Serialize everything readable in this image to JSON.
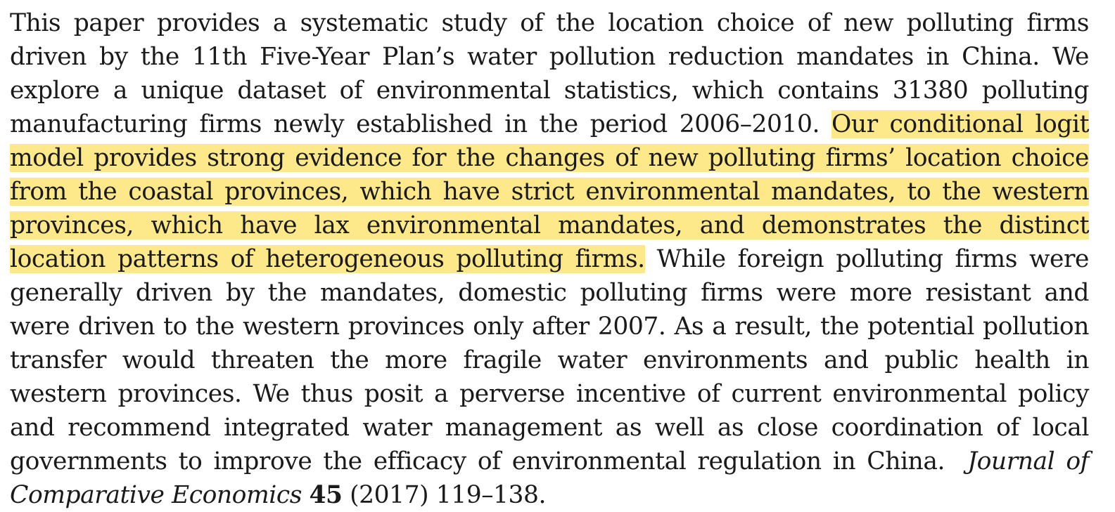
{
  "abstract": {
    "before_highlight": "This paper provides a systematic study of the location choice of new polluting firms driven by the 11th Five-Year Plan’s water pollution reduction mandates in China. We explore a unique dataset of environmental statistics, which contains 31380 polluting manufactur­ing firms newly established in the period 2006–2010.",
    "highlight": "Our conditional logit model pro­vides strong evidence for the changes of new polluting firms’ location choice from the coastal provinces, which have strict environmental mandates, to the western provinces, which have lax environmental mandates, and demonstrates the distinct location patterns of heterogeneous polluting firms.",
    "after_highlight": "While foreign polluting firms were generally driven by the mandates, domestic polluting firms were more resistant and were driven to the west­ern provinces only after 2007. As a result, the potential pollution transfer would threaten the more fragile water environments and public health in western provinces. We thus posit a perverse incentive of current environmental policy and recommend integrated wa­ter management as well as close coordination of local governments to improve the efficacy of environmental regulation in China."
  },
  "citation": {
    "journal": "Journal of Comparative Economics",
    "volume": "45",
    "year_pages": "(2017) 119–138."
  },
  "colors": {
    "highlight": "#fde98a",
    "text": "#1a1a1a"
  }
}
